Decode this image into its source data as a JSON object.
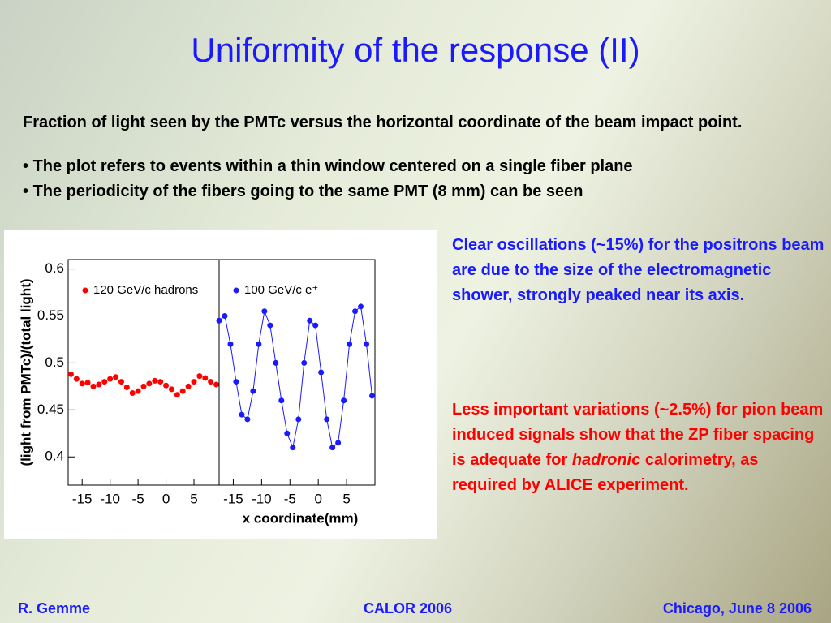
{
  "title": "Uniformity of the response (II)",
  "intro": "Fraction of light seen by the PMTc versus the horizontal coordinate of the beam impact point.",
  "bullets": [
    "The plot refers to events within a thin window centered on a single fiber plane",
    "The periodicity of the fibers going to the same PMT (8 mm) can be seen"
  ],
  "note_blue": "Clear oscillations (~15%) for the positrons beam are due to the size of the electromagnetic shower, strongly peaked near its axis.",
  "note_red": {
    "before": "Less important variations (~2.5%) for pion beam induced signals show that the ZP fiber spacing is adequate for ",
    "emphasis": "hadronic",
    "after": " calorimetry, as required by ALICE experiment."
  },
  "footer": {
    "left": "R. Gemme",
    "center": "CALOR 2006",
    "right": "Chicago, June 8 2006"
  },
  "chart_data": [
    {
      "type": "scatter",
      "ylabel": "(light from PMTc)/(total light)",
      "x": [
        -17,
        -16,
        -15,
        -14,
        -13,
        -12,
        -11,
        -10,
        -9,
        -8,
        -7,
        -6,
        -5,
        -4,
        -3,
        -2,
        -1,
        0,
        1,
        2,
        3,
        4,
        5,
        6,
        7,
        8,
        9
      ],
      "series": [
        {
          "name": "120 GeV/c hadrons",
          "color": "#ff0000",
          "values": [
            0.488,
            0.483,
            0.478,
            0.479,
            0.475,
            0.477,
            0.48,
            0.483,
            0.485,
            0.48,
            0.474,
            0.468,
            0.47,
            0.475,
            0.478,
            0.481,
            0.48,
            0.476,
            0.472,
            0.466,
            0.47,
            0.475,
            0.48,
            0.486,
            0.484,
            0.48,
            0.477
          ]
        }
      ],
      "xlim": [
        -17.5,
        9.5
      ],
      "ylim": [
        0.37,
        0.61
      ],
      "xticks": [
        -15,
        -10,
        -5,
        0,
        5
      ],
      "yticks": [
        0.4,
        0.45,
        0.5,
        0.55,
        0.6
      ]
    },
    {
      "type": "line",
      "xlabel": "x coordinate(mm)",
      "x": [
        -17.5,
        -16.5,
        -15.5,
        -14.5,
        -13.5,
        -12.5,
        -11.5,
        -10.5,
        -9.5,
        -8.5,
        -7.5,
        -6.5,
        -5.5,
        -4.5,
        -3.5,
        -2.5,
        -1.5,
        -0.5,
        0.5,
        1.5,
        2.5,
        3.5,
        4.5,
        5.5,
        6.5,
        7.5,
        8.5,
        9.5
      ],
      "series": [
        {
          "name": "100 GeV/c e⁺",
          "color": "#1a1aff",
          "values": [
            0.545,
            0.55,
            0.52,
            0.48,
            0.445,
            0.44,
            0.47,
            0.52,
            0.555,
            0.54,
            0.5,
            0.46,
            0.425,
            0.41,
            0.44,
            0.5,
            0.545,
            0.54,
            0.49,
            0.44,
            0.41,
            0.415,
            0.46,
            0.52,
            0.555,
            0.56,
            0.52,
            0.465
          ]
        }
      ],
      "xlim": [
        -17.5,
        10
      ],
      "ylim": [
        0.37,
        0.61
      ],
      "xticks": [
        -15,
        -10,
        -5,
        0,
        5
      ]
    }
  ]
}
